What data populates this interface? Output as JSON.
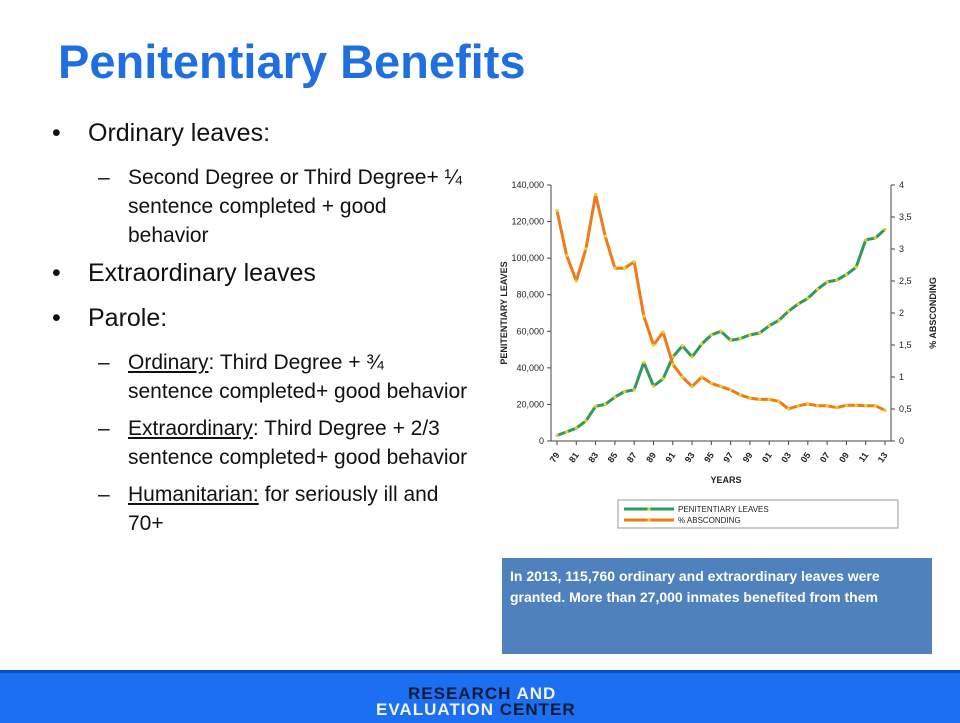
{
  "title": "Penitentiary Benefits",
  "bullets": [
    {
      "label": "Ordinary leaves:",
      "subs": [
        {
          "prefix": "Second Degree or Third Degree+ ¼ sentence completed + good behavior",
          "rest": ""
        }
      ]
    },
    {
      "label": "Extraordinary leaves",
      "subs": []
    },
    {
      "label": "Parole:",
      "subs": [
        {
          "prefix": "Ordinary",
          "rest": ": Third Degree + ¾ sentence completed+ good behavior"
        },
        {
          "prefix": "Extraordinary",
          "rest": ": Third Degree + 2/3 sentence completed+ good behavior"
        },
        {
          "prefix": "Humanitarian:",
          "rest": " for seriously ill and 70+"
        }
      ]
    }
  ],
  "caption": "In 2013, 115,760 ordinary and extraordinary leaves were granted. More than 27,000 inmates benefited from them",
  "logo": {
    "line1a": "RESEARCH",
    "line1b": " AND",
    "line2a": "EVALUATION",
    "line2b": " CENTER"
  },
  "colors": {
    "leaves": "#2e9b5a",
    "absconding": "#f07a1a",
    "marker": "#e6d21e",
    "accent": "#1f6fe0",
    "footer": "#1b6ff0"
  },
  "chart_data": {
    "type": "line",
    "x": [
      "79",
      "80",
      "81",
      "82",
      "83",
      "84",
      "85",
      "86",
      "87",
      "88",
      "89",
      "90",
      "91",
      "92",
      "93",
      "94",
      "95",
      "96",
      "97",
      "98",
      "99",
      "00",
      "01",
      "02",
      "03",
      "04",
      "05",
      "06",
      "07",
      "08",
      "09",
      "10",
      "11",
      "12",
      "13"
    ],
    "x_tick_labels": [
      "79",
      "81",
      "83",
      "85",
      "87",
      "89",
      "91",
      "93",
      "95",
      "97",
      "99",
      "01",
      "03",
      "05",
      "07",
      "09",
      "11",
      "13"
    ],
    "xlabel": "YEARS",
    "ylabel": "PENITENTIARY LEAVES",
    "y2label": "% ABSCONDING",
    "ylim": [
      0,
      140000
    ],
    "y2lim": [
      0,
      4
    ],
    "y_ticks": [
      "0",
      "20,000",
      "40,000",
      "60,000",
      "80,000",
      "100,000",
      "120,000",
      "140,000"
    ],
    "y2_ticks": [
      "0",
      "0,5",
      "1",
      "1,5",
      "2",
      "2,5",
      "3",
      "3,5",
      "4"
    ],
    "series": [
      {
        "name": "PENITENTIARY LEAVES",
        "axis": "left",
        "values": [
          3000,
          5000,
          7000,
          11000,
          19000,
          20000,
          24000,
          27000,
          28000,
          43000,
          30000,
          34000,
          46000,
          52000,
          46000,
          53000,
          58000,
          60000,
          55000,
          56000,
          58000,
          59000,
          63000,
          66000,
          71000,
          75000,
          78000,
          83000,
          87000,
          88000,
          91000,
          95000,
          110000,
          111000,
          115760
        ]
      },
      {
        "name": "% ABSCONDING",
        "axis": "right",
        "values": [
          3.6,
          2.9,
          2.5,
          3.0,
          3.85,
          3.2,
          2.7,
          2.7,
          2.8,
          1.95,
          1.5,
          1.7,
          1.2,
          1.0,
          0.85,
          1.0,
          0.9,
          0.85,
          0.8,
          0.72,
          0.67,
          0.65,
          0.65,
          0.62,
          0.5,
          0.55,
          0.58,
          0.55,
          0.55,
          0.52,
          0.56,
          0.56,
          0.55,
          0.55,
          0.48
        ]
      }
    ],
    "legend": "bottom"
  }
}
